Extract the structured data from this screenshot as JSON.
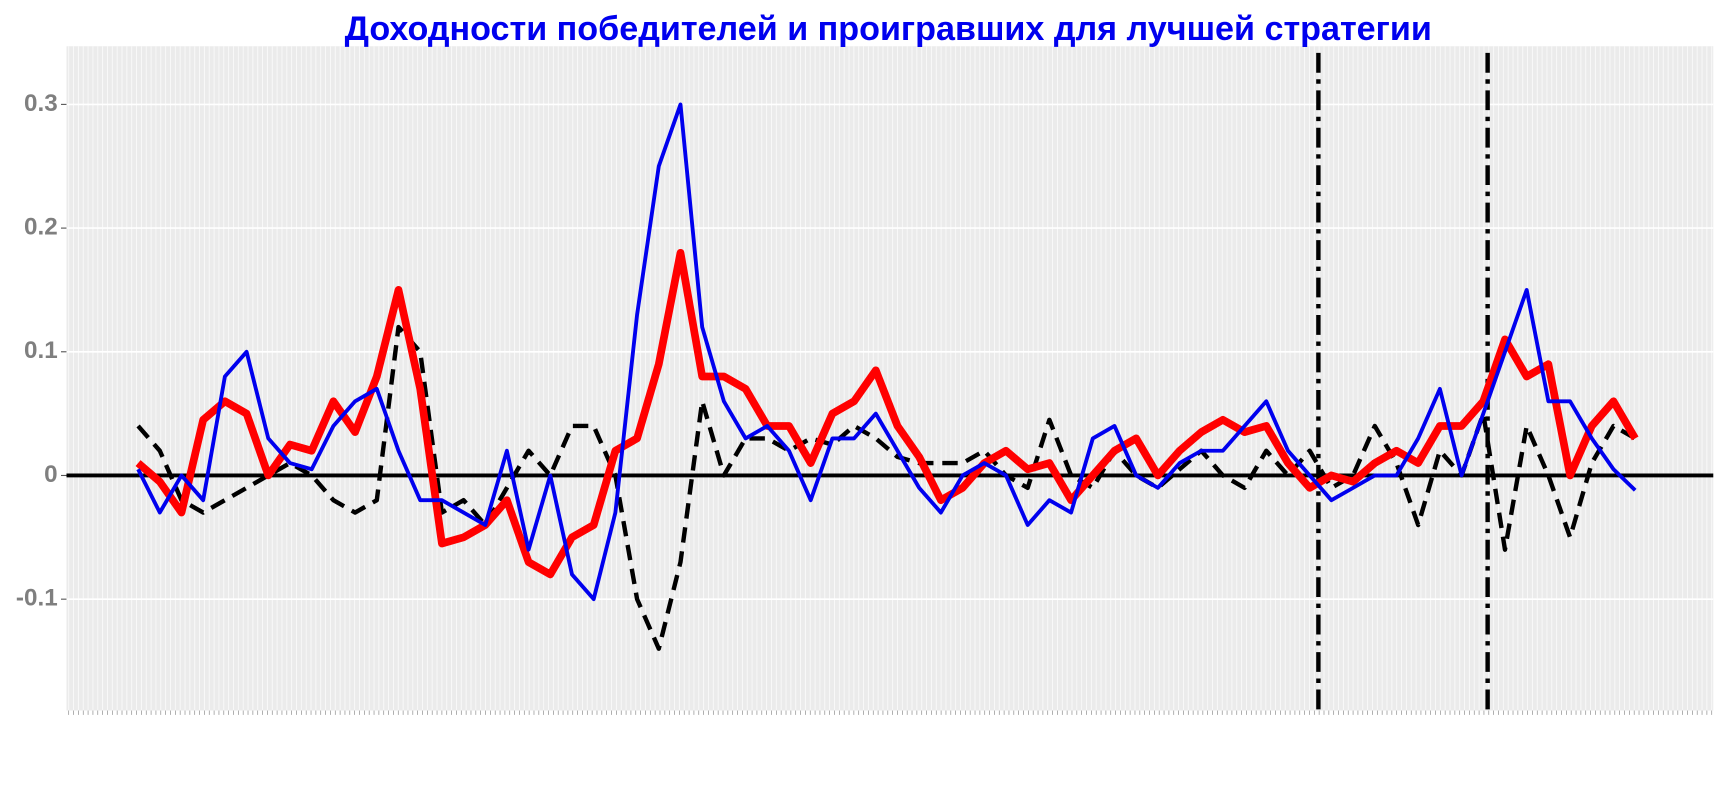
{
  "chart_data": {
    "type": "line",
    "title": "Доходности победителей и проигравших для лучшей стратегии",
    "x": [
      0,
      1,
      2,
      3,
      4,
      5,
      6,
      7,
      8,
      9,
      10,
      11,
      12,
      13,
      14,
      15,
      16,
      17,
      18,
      19,
      20,
      21,
      22,
      23,
      24,
      25,
      26,
      27,
      28,
      29,
      30,
      31,
      32,
      33,
      34,
      35,
      36,
      37,
      38,
      39,
      40,
      41,
      42,
      43,
      44,
      45,
      46,
      47,
      48,
      49,
      50,
      51,
      52,
      53,
      54,
      55,
      56,
      57,
      58,
      59,
      60,
      61,
      62,
      63,
      64,
      65,
      66,
      67,
      68,
      69
    ],
    "xlim": [
      -3.3,
      72.6
    ],
    "ylim": [
      -0.19,
      0.347
    ],
    "yticks": [
      -0.1,
      0.0,
      0.1,
      0.2,
      0.3
    ],
    "grid": true,
    "vlines": [
      54.4,
      62.2
    ],
    "series": [
      {
        "color": "#000000",
        "dash": true,
        "width": 4,
        "values": [
          0.04,
          0.02,
          -0.02,
          -0.03,
          -0.02,
          -0.01,
          0.0,
          0.01,
          0.0,
          -0.02,
          -0.03,
          -0.02,
          0.12,
          0.1,
          -0.03,
          -0.02,
          -0.04,
          -0.01,
          0.02,
          0.0,
          0.04,
          0.04,
          0.0,
          -0.1,
          -0.14,
          -0.07,
          0.06,
          0.0,
          0.03,
          0.03,
          0.02,
          0.03,
          0.025,
          0.04,
          0.03,
          0.015,
          0.01,
          0.01,
          0.01,
          0.02,
          0.0,
          -0.01,
          0.045,
          0.0,
          -0.01,
          0.02,
          0.0,
          -0.01,
          0.005,
          0.02,
          0.0,
          -0.01,
          0.02,
          0.0,
          0.02,
          -0.01,
          0.0,
          0.04,
          0.01,
          -0.04,
          0.02,
          0.0,
          0.05,
          -0.06,
          0.04,
          0.0,
          -0.05,
          0.01,
          0.04,
          0.03
        ]
      },
      {
        "color": "#ff0000",
        "dash": false,
        "width": 7,
        "values": [
          0.01,
          -0.005,
          -0.03,
          0.045,
          0.06,
          0.05,
          0.0,
          0.025,
          0.02,
          0.06,
          0.035,
          0.08,
          0.15,
          0.07,
          -0.055,
          -0.05,
          -0.04,
          -0.02,
          -0.07,
          -0.08,
          -0.05,
          -0.04,
          0.02,
          0.03,
          0.09,
          0.18,
          0.08,
          0.08,
          0.07,
          0.04,
          0.04,
          0.01,
          0.05,
          0.06,
          0.085,
          0.04,
          0.015,
          -0.02,
          -0.01,
          0.01,
          0.02,
          0.005,
          0.01,
          -0.02,
          0.0,
          0.02,
          0.03,
          0.0,
          0.02,
          0.035,
          0.045,
          0.035,
          0.04,
          0.01,
          -0.01,
          0.0,
          -0.005,
          0.01,
          0.02,
          0.01,
          0.04,
          0.04,
          0.06,
          0.11,
          0.08,
          0.09,
          0.0,
          0.04,
          0.06,
          0.03
        ]
      },
      {
        "color": "#0000ee",
        "dash": false,
        "width": 3.5,
        "values": [
          0.005,
          -0.03,
          0.0,
          -0.02,
          0.08,
          0.1,
          0.03,
          0.01,
          0.005,
          0.04,
          0.06,
          0.07,
          0.02,
          -0.02,
          -0.02,
          -0.03,
          -0.04,
          0.02,
          -0.06,
          0.0,
          -0.08,
          -0.1,
          -0.03,
          0.13,
          0.25,
          0.3,
          0.12,
          0.06,
          0.03,
          0.04,
          0.02,
          -0.02,
          0.03,
          0.03,
          0.05,
          0.02,
          -0.01,
          -0.03,
          0.0,
          0.01,
          0.0,
          -0.04,
          -0.02,
          -0.03,
          0.03,
          0.04,
          0.0,
          -0.01,
          0.01,
          0.02,
          0.02,
          0.04,
          0.06,
          0.02,
          0.0,
          -0.02,
          -0.01,
          0.0,
          0.0,
          0.03,
          0.07,
          0.0,
          0.05,
          0.1,
          0.15,
          0.06,
          0.06,
          0.03,
          0.005,
          -0.012
        ]
      }
    ]
  }
}
